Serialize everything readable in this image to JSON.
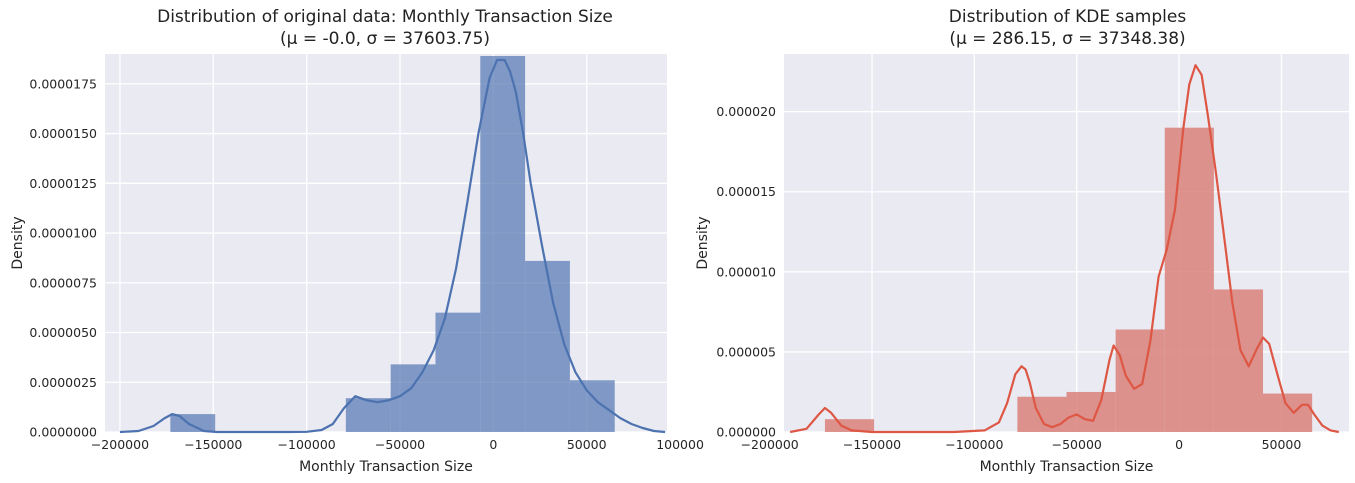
{
  "chart_data": [
    {
      "type": "bar",
      "title": "Distribution of original data: Monthly Transaction Size",
      "subtitle": "(μ = -0.0, σ = 37603.75)",
      "xlabel": "Monthly Transaction Size",
      "ylabel": "Density",
      "xlim": [
        -208000,
        93000
      ],
      "ylim": [
        0,
        1.9e-05
      ],
      "xticks": [
        -200000,
        -150000,
        -100000,
        -50000,
        0,
        50000,
        100000
      ],
      "yticks": [
        0.0,
        2.5e-06,
        5e-06,
        7.5e-06,
        1e-05,
        1.25e-05,
        1.5e-05,
        1.75e-05
      ],
      "ytick_labels": [
        "0.0000000",
        "0.0000025",
        "0.0000050",
        "0.0000075",
        "0.0000100",
        "0.0000125",
        "0.0000150",
        "0.0000175"
      ],
      "grid": true,
      "bar_color": "#4c72b0",
      "line_color": "#4c72b0",
      "bins": [
        {
          "x0": -173000,
          "x1": -149000,
          "value": 9e-07
        },
        {
          "x0": -79000,
          "x1": -55000,
          "value": 1.7e-06
        },
        {
          "x0": -55000,
          "x1": -31000,
          "value": 3.4e-06
        },
        {
          "x0": -31000,
          "x1": -7000,
          "value": 6e-06
        },
        {
          "x0": -7000,
          "x1": 17000,
          "value": 1.89e-05
        },
        {
          "x0": 17000,
          "x1": 41000,
          "value": 8.6e-06
        },
        {
          "x0": 41000,
          "x1": 65000,
          "value": 2.6e-06
        }
      ],
      "kde": {
        "x": [
          -200000,
          -190000,
          -182000,
          -176000,
          -172000,
          -168000,
          -163000,
          -155000,
          -148000,
          -140000,
          -130000,
          -120000,
          -110000,
          -100000,
          -92000,
          -86000,
          -80000,
          -74000,
          -68000,
          -62000,
          -56000,
          -50000,
          -44000,
          -38000,
          -32000,
          -26000,
          -20000,
          -14000,
          -8000,
          -2000,
          2000,
          6000,
          9000,
          12000,
          16000,
          20000,
          26000,
          32000,
          38000,
          44000,
          50000,
          56000,
          62000,
          68000,
          74000,
          80000,
          86000,
          92000
        ],
        "y": [
          0,
          5e-08,
          3e-07,
          7e-07,
          9e-07,
          8e-07,
          4e-07,
          5e-08,
          0,
          0,
          0,
          0,
          0,
          1e-08,
          1e-07,
          4e-07,
          1.2e-06,
          1.8e-06,
          1.6e-06,
          1.5e-06,
          1.6e-06,
          1.8e-06,
          2.2e-06,
          3e-06,
          4.1e-06,
          5.7e-06,
          8.2e-06,
          1.15e-05,
          1.5e-05,
          1.78e-05,
          1.87e-05,
          1.87e-05,
          1.81e-05,
          1.71e-05,
          1.5e-05,
          1.25e-05,
          9.4e-06,
          6.5e-06,
          4.4e-06,
          3e-06,
          2.1e-06,
          1.5e-06,
          1.1e-06,
          7e-07,
          4e-07,
          2e-07,
          5e-08,
          0
        ]
      }
    },
    {
      "type": "bar",
      "title": "Distribution of KDE samples",
      "subtitle": "(μ = 286.15, σ = 37348.38)",
      "xlabel": "Monthly Transaction Size",
      "ylabel": "Density",
      "xlim": [
        -193000,
        83000
      ],
      "ylim": [
        0,
        2.36e-05
      ],
      "xticks": [
        -200000,
        -150000,
        -100000,
        -50000,
        0,
        50000
      ],
      "yticks": [
        0.0,
        5e-06,
        1e-05,
        1.5e-05,
        2e-05
      ],
      "ytick_labels": [
        "0.000000",
        "0.000005",
        "0.000010",
        "0.000015",
        "0.000020"
      ],
      "grid": true,
      "bar_color": "#dd8452",
      "line_color": "#dd5744",
      "bins": [
        {
          "x0": -173000,
          "x1": -149000,
          "value": 8e-07
        },
        {
          "x0": -79000,
          "x1": -55000,
          "value": 2.2e-06
        },
        {
          "x0": -55000,
          "x1": -31000,
          "value": 2.5e-06
        },
        {
          "x0": -31000,
          "x1": -7000,
          "value": 6.4e-06
        },
        {
          "x0": -7000,
          "x1": 17000,
          "value": 1.9e-05
        },
        {
          "x0": 17000,
          "x1": 41000,
          "value": 8.9e-06
        },
        {
          "x0": 41000,
          "x1": 65000,
          "value": 2.4e-06
        }
      ],
      "kde": {
        "x": [
          -190000,
          -182000,
          -176000,
          -173000,
          -170000,
          -165000,
          -160000,
          -150000,
          -130000,
          -110000,
          -95000,
          -88000,
          -84000,
          -80000,
          -77000,
          -75000,
          -73000,
          -70000,
          -66000,
          -62000,
          -58000,
          -54000,
          -50000,
          -46000,
          -42000,
          -38000,
          -34000,
          -32000,
          -29000,
          -26000,
          -22000,
          -18000,
          -14000,
          -10000,
          -6000,
          -2000,
          2000,
          5000,
          8000,
          11000,
          14000,
          18000,
          22000,
          26000,
          30000,
          34000,
          38000,
          41000,
          44000,
          48000,
          52000,
          56000,
          60000,
          63000,
          66000,
          70000,
          74000,
          78000
        ],
        "y": [
          0,
          2e-07,
          1.1e-06,
          1.5e-06,
          1.2e-06,
          4e-07,
          1e-07,
          0,
          0,
          0,
          1e-07,
          6e-07,
          1.8e-06,
          3.6e-06,
          4.1e-06,
          3.9e-06,
          3.1e-06,
          1.5e-06,
          5e-07,
          3e-07,
          5e-07,
          9e-07,
          1.1e-06,
          8e-07,
          7e-07,
          2e-06,
          4.5e-06,
          5.4e-06,
          4.8e-06,
          3.5e-06,
          2.7e-06,
          3e-06,
          5.7e-06,
          9.7e-06,
          1.14e-05,
          1.39e-05,
          1.89e-05,
          2.17e-05,
          2.29e-05,
          2.23e-05,
          1.98e-05,
          1.62e-05,
          1.22e-05,
          8.1e-06,
          5.1e-06,
          4.1e-06,
          5.2e-06,
          5.9e-06,
          5.5e-06,
          3.6e-06,
          1.8e-06,
          1.2e-06,
          1.7e-06,
          1.7e-06,
          1.1e-06,
          4e-07,
          1e-07,
          0
        ]
      }
    }
  ]
}
